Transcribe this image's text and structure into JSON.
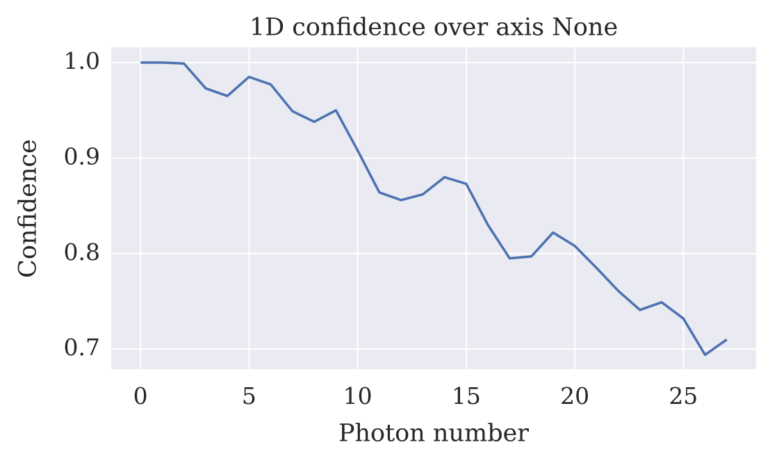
{
  "chart_data": {
    "type": "line",
    "title": "1D confidence over axis None",
    "x_label": "Photon number",
    "y_label": "Confidence",
    "x": [
      0,
      1,
      2,
      3,
      4,
      5,
      6,
      7,
      8,
      9,
      10,
      11,
      12,
      13,
      14,
      15,
      16,
      17,
      18,
      19,
      20,
      21,
      22,
      23,
      24,
      25,
      26,
      27
    ],
    "series": [
      {
        "color": "#4c72b0",
        "values": [
          1.0,
          1.0,
          0.999,
          0.973,
          0.965,
          0.985,
          0.977,
          0.949,
          0.938,
          0.95,
          0.908,
          0.864,
          0.856,
          0.862,
          0.88,
          0.873,
          0.83,
          0.795,
          0.797,
          0.822,
          0.808,
          0.785,
          0.761,
          0.741,
          0.749,
          0.732,
          0.694,
          0.71
        ]
      }
    ],
    "xlim": [
      -1.35,
      28.35
    ],
    "xticks": [
      0,
      5,
      10,
      15,
      20,
      25
    ],
    "ylim": [
      0.679,
      1.016
    ],
    "yticks": [
      {
        "value": 0.7,
        "label": "0.7"
      },
      {
        "value": 0.8,
        "label": "0.8"
      },
      {
        "value": 0.9,
        "label": "0.9"
      },
      {
        "value": 1.0,
        "label": "1.0"
      }
    ],
    "grid": true
  }
}
